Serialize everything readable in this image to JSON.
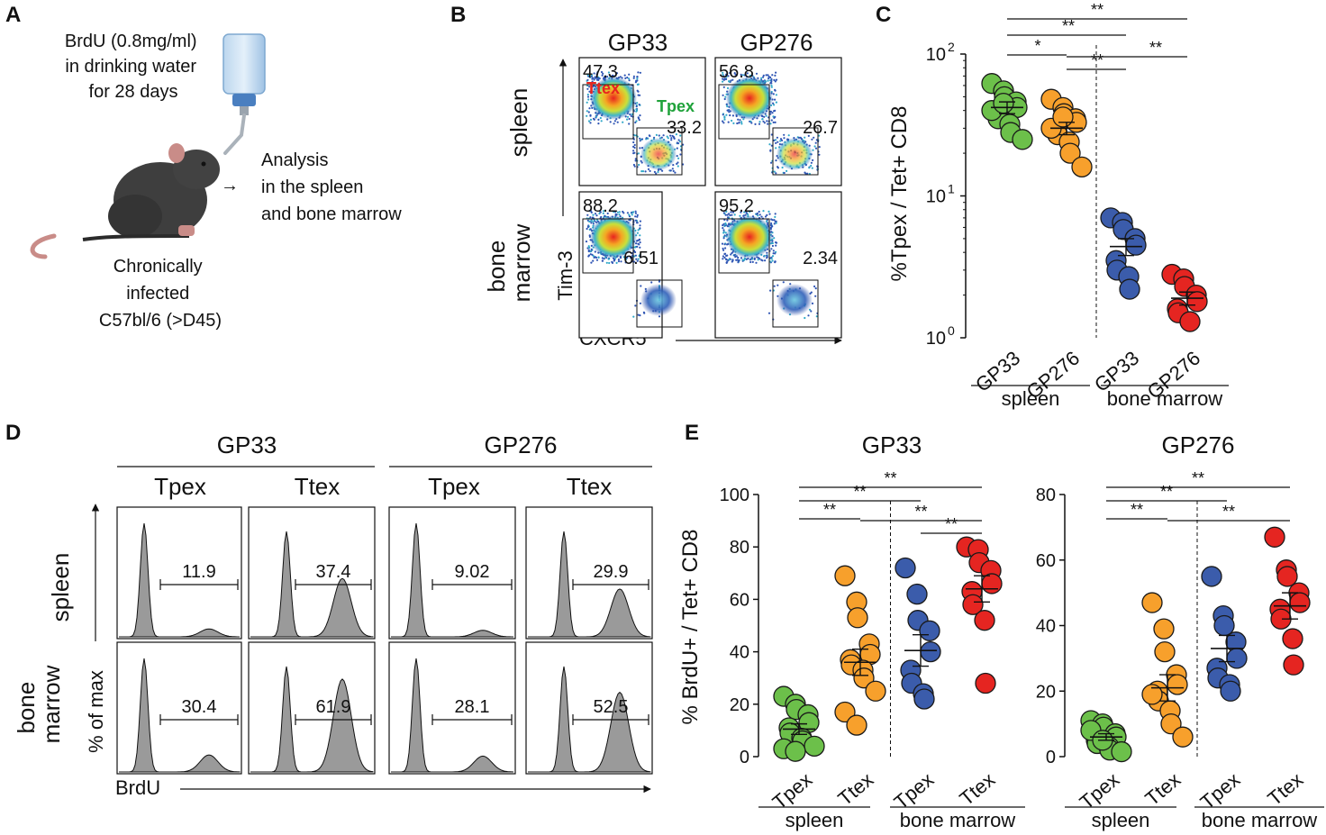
{
  "panels": {
    "A": "A",
    "B": "B",
    "C": "C",
    "D": "D",
    "E": "E"
  },
  "panel_a": {
    "drug_lines": [
      "BrdU (0.8mg/ml)",
      "in drinking water",
      "for 28 days"
    ],
    "analysis_lines": [
      "Analysis",
      "in the spleen",
      "and bone marrow"
    ],
    "mouse_lines": [
      "Chronically",
      "infected",
      "C57bl/6 (>D45)"
    ],
    "arrow": "→"
  },
  "panel_b": {
    "columns": [
      "GP33",
      "GP276"
    ],
    "rows": [
      "spleen",
      "bone marrow"
    ],
    "row_label_lines": [
      [
        "spleen"
      ],
      [
        "bone",
        "marrow"
      ]
    ],
    "y_axis": "Tim-3",
    "x_axis": "CXCR5",
    "gate_labels": {
      "ttex": "Ttex",
      "tpex": "Tpex"
    },
    "label_colors": {
      "ttex": "#e8231f",
      "tpex": "#1fa23a"
    },
    "plots": [
      {
        "upper": "47.3",
        "lower": "33.2"
      },
      {
        "upper": "56.8",
        "lower": "26.7"
      },
      {
        "upper": "88.2",
        "lower": "6.51"
      },
      {
        "upper": "95.2",
        "lower": "2.34"
      }
    ]
  },
  "panel_d": {
    "groups": [
      "GP33",
      "GP276"
    ],
    "subsets": [
      "Tpex",
      "Ttex",
      "Tpex",
      "Ttex"
    ],
    "rows": [
      "spleen",
      "bone marrow"
    ],
    "row_label_lines": [
      [
        "spleen"
      ],
      [
        "bone",
        "marrow"
      ]
    ],
    "y_axis": "% of max",
    "x_axis": "BrdU",
    "values": [
      [
        "11.9",
        "37.4",
        "9.02",
        "29.9"
      ],
      [
        "30.4",
        "61.9",
        "28.1",
        "52.5"
      ]
    ]
  },
  "chart_data": [
    {
      "type": "scatter",
      "panel": "C",
      "title": "",
      "ylabel": "%Tpex / Tet+ CD8",
      "yscale": "log",
      "ylim": [
        1,
        100
      ],
      "yticks": [
        {
          "label": "10",
          "sup": "0"
        },
        {
          "label": "10",
          "sup": "1"
        },
        {
          "label": "10",
          "sup": "2"
        }
      ],
      "categories": [
        "GP33",
        "GP276",
        "GP33",
        "GP276"
      ],
      "groups": [
        {
          "name": "spleen",
          "span": [
            0,
            1
          ]
        },
        {
          "name": "bone marrow",
          "span": [
            2,
            3
          ]
        }
      ],
      "series": [
        {
          "name": "spleen GP33",
          "color": "#6cc04a",
          "values": [
            62,
            55,
            50,
            46,
            42,
            38,
            35,
            32,
            28,
            25,
            40,
            45
          ],
          "mean": 42,
          "sem": 4
        },
        {
          "name": "spleen GP276",
          "color": "#f7a02c",
          "values": [
            48,
            42,
            38,
            35,
            33,
            30,
            27,
            24,
            20,
            16,
            30,
            36
          ],
          "mean": 30,
          "sem": 3
        },
        {
          "name": "bone marrow GP33",
          "color": "#3b5cab",
          "values": [
            7,
            6.5,
            5.8,
            5.0,
            4.5,
            3.5,
            3.0,
            2.7,
            2.2
          ],
          "mean": 4.4,
          "sem": 0.6
        },
        {
          "name": "bone marrow GP276",
          "color": "#e52521",
          "values": [
            2.8,
            2.6,
            2.3,
            2.0,
            1.8,
            1.6,
            1.5,
            1.3
          ],
          "mean": 1.9,
          "sem": 0.2
        }
      ],
      "significance": [
        {
          "from": 0,
          "to": 3,
          "label": "**"
        },
        {
          "from": 0,
          "to": 2,
          "label": "**"
        },
        {
          "from": 1,
          "to": 3,
          "label": "**"
        },
        {
          "from": 0,
          "to": 1,
          "label": "*"
        },
        {
          "from": 1,
          "to": 2,
          "label": "**"
        }
      ]
    },
    {
      "type": "scatter",
      "panel": "E",
      "title": "GP33",
      "ylabel": "% BrdU+ / Tet+ CD8",
      "ylim": [
        0,
        100
      ],
      "yticks": [
        0,
        20,
        40,
        60,
        80,
        100
      ],
      "categories": [
        "Tpex",
        "Ttex",
        "Tpex",
        "Ttex"
      ],
      "groups": [
        {
          "name": "spleen",
          "span": [
            0,
            1
          ]
        },
        {
          "name": "bone marrow",
          "span": [
            2,
            3
          ]
        }
      ],
      "series": [
        {
          "name": "spleen Tpex",
          "color": "#6cc04a",
          "values": [
            23,
            20,
            18,
            16,
            13,
            11,
            9,
            7,
            6,
            4,
            3,
            2
          ],
          "mean": 10.5,
          "sem": 2
        },
        {
          "name": "spleen Ttex",
          "color": "#f7a02c",
          "values": [
            69,
            59,
            53,
            43,
            39,
            37,
            35,
            33,
            30,
            25,
            17,
            12
          ],
          "mean": 36,
          "sem": 5
        },
        {
          "name": "bone marrow Tpex",
          "color": "#3b5cab",
          "values": [
            72,
            62,
            52,
            48,
            40,
            33,
            28,
            24,
            22
          ],
          "mean": 40.5,
          "sem": 6
        },
        {
          "name": "bone marrow Ttex",
          "color": "#e52521",
          "values": [
            80,
            79,
            74,
            71,
            66,
            63,
            58,
            52,
            28
          ],
          "mean": 64,
          "sem": 5
        }
      ],
      "significance": [
        {
          "from": 0,
          "to": 3,
          "label": "**"
        },
        {
          "from": 0,
          "to": 2,
          "label": "**"
        },
        {
          "from": 0,
          "to": 1,
          "label": "**"
        },
        {
          "from": 1,
          "to": 3,
          "label": "**"
        },
        {
          "from": 2,
          "to": 3,
          "label": "**"
        }
      ]
    },
    {
      "type": "scatter",
      "panel": "E",
      "title": "GP276",
      "ylabel": "",
      "ylim": [
        0,
        80
      ],
      "yticks": [
        0,
        20,
        40,
        60,
        80
      ],
      "categories": [
        "Tpex",
        "Ttex",
        "Tpex",
        "Ttex"
      ],
      "groups": [
        {
          "name": "spleen",
          "span": [
            0,
            1
          ]
        },
        {
          "name": "bone marrow",
          "span": [
            2,
            3
          ]
        }
      ],
      "series": [
        {
          "name": "spleen Tpex",
          "color": "#6cc04a",
          "values": [
            11,
            10,
            9,
            7,
            6,
            5,
            4,
            3,
            2,
            1.5,
            8,
            5
          ],
          "mean": 6,
          "sem": 1
        },
        {
          "name": "spleen Ttex",
          "color": "#f7a02c",
          "values": [
            47,
            39,
            32,
            25,
            22,
            20,
            17,
            14,
            10,
            6,
            19
          ],
          "mean": 21,
          "sem": 4
        },
        {
          "name": "bone marrow Tpex",
          "color": "#3b5cab",
          "values": [
            55,
            43,
            40,
            35,
            30,
            27,
            24,
            22,
            20
          ],
          "mean": 33,
          "sem": 4
        },
        {
          "name": "bone marrow Ttex",
          "color": "#e52521",
          "values": [
            67,
            57,
            55,
            50,
            47,
            45,
            42,
            36,
            28
          ],
          "mean": 46,
          "sem": 4
        }
      ],
      "significance": [
        {
          "from": 0,
          "to": 3,
          "label": "**"
        },
        {
          "from": 0,
          "to": 2,
          "label": "**"
        },
        {
          "from": 0,
          "to": 1,
          "label": "**"
        },
        {
          "from": 1,
          "to": 3,
          "label": "**"
        }
      ]
    }
  ]
}
